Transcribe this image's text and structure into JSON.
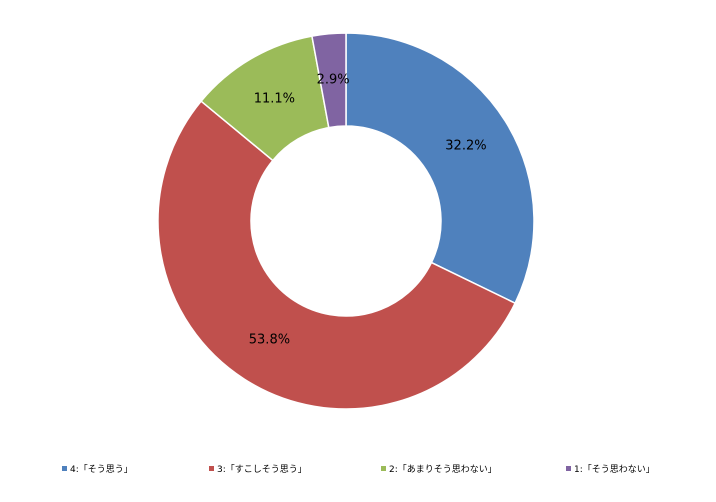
{
  "chart_data": {
    "type": "pie",
    "style": "donut",
    "categories": [
      "4:「そう思う」",
      "3:「すこしそう思う」",
      "2:「あまりそう思わない」",
      "1:「そう思わない」"
    ],
    "values": [
      32.2,
      53.8,
      11.1,
      2.9
    ],
    "value_labels": [
      "32.2%",
      "53.8%",
      "11.1%",
      "2.9%"
    ],
    "colors": [
      "#4f81bd",
      "#c0504d",
      "#9bbb59",
      "#8064a2"
    ],
    "start_angle_deg": 0,
    "direction": "clockwise",
    "legend_position": "bottom"
  }
}
